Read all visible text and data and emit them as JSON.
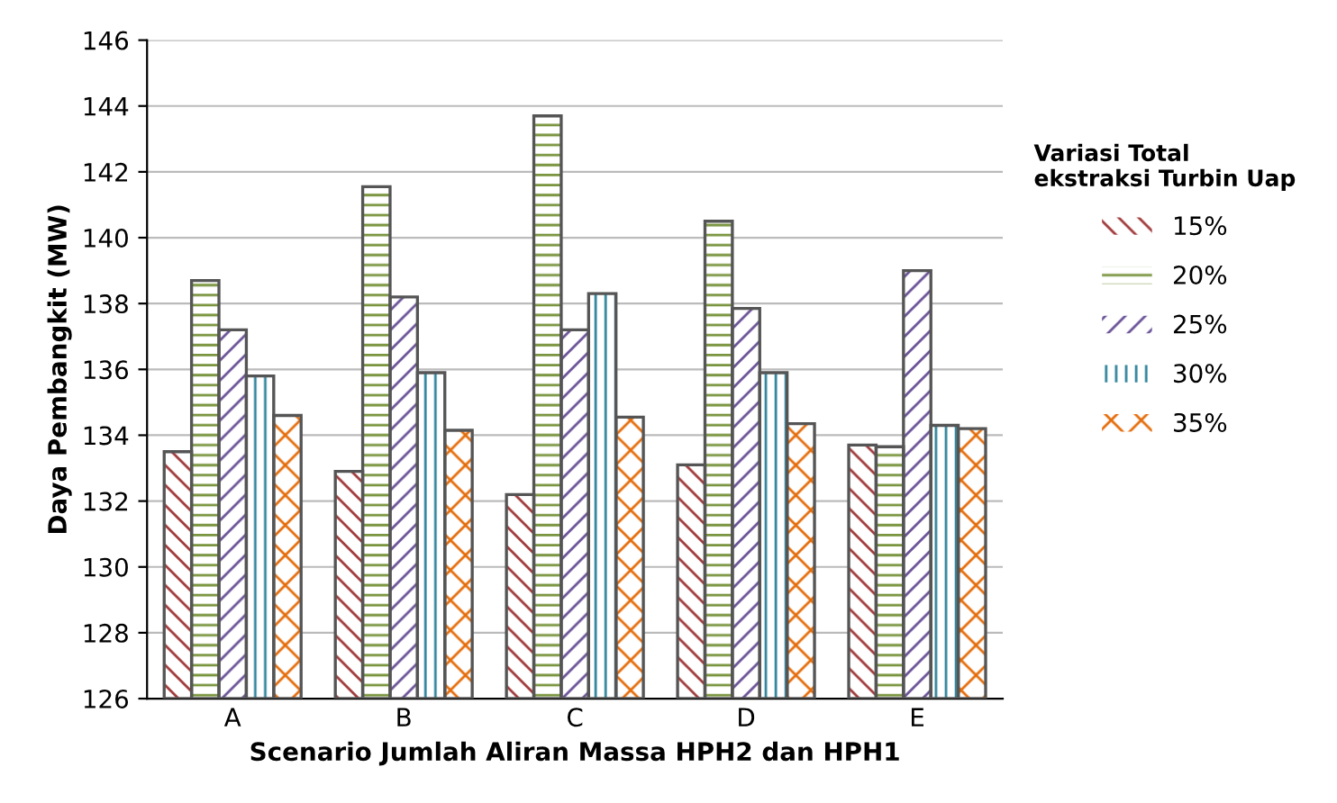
{
  "chart_data": {
    "type": "bar",
    "xlabel": "Scenario Jumlah Aliran Massa HPH2 dan HPH1",
    "ylabel": "Daya Pembangkit (MW)",
    "legend_title": "Variasi Total\nekstraksi Turbin Uap",
    "categories": [
      "A",
      "B",
      "C",
      "D",
      "E"
    ],
    "series": [
      {
        "name": "15%",
        "color": "#a0393a",
        "values": [
          133.5,
          132.9,
          132.2,
          133.1,
          133.7
        ]
      },
      {
        "name": "20%",
        "color": "#77933c",
        "values": [
          138.7,
          141.55,
          143.7,
          140.5,
          133.65
        ]
      },
      {
        "name": "25%",
        "color": "#6a5297",
        "values": [
          137.2,
          138.2,
          137.2,
          137.85,
          139.0
        ]
      },
      {
        "name": "30%",
        "color": "#31859c",
        "values": [
          135.8,
          135.9,
          138.3,
          135.9,
          134.3
        ]
      },
      {
        "name": "35%",
        "color": "#e46c0a",
        "values": [
          134.6,
          134.15,
          134.55,
          134.35,
          134.2
        ]
      }
    ],
    "ylim": [
      126,
      146
    ],
    "yticks": [
      126,
      128,
      130,
      132,
      134,
      136,
      138,
      140,
      142,
      144,
      146
    ],
    "grid": "y",
    "legend": "right"
  }
}
